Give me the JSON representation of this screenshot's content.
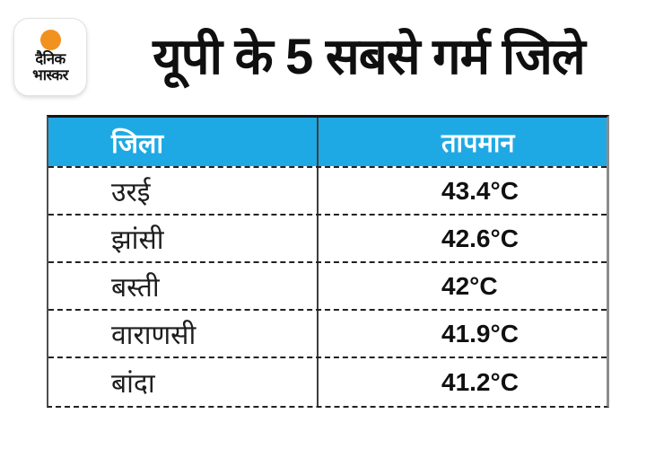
{
  "colors": {
    "header_bg": "#1FA9E4",
    "header_text": "#FFFFFF",
    "sun_orange": "#F1911E",
    "title_text": "#0F0F0F",
    "body_text": "#1D1D1D"
  },
  "logo": {
    "line1": "दैनिक",
    "line2": "भास्कर"
  },
  "title": "यूपी के 5 सबसे गर्म जिले",
  "table": {
    "headers": {
      "district": "जिला",
      "temperature": "तापमान"
    },
    "rows": [
      {
        "district": "उरई",
        "temperature": "43.4°C"
      },
      {
        "district": "झांसी",
        "temperature": "42.6°C"
      },
      {
        "district": "बस्ती",
        "temperature": "42°C"
      },
      {
        "district": "वाराणसी",
        "temperature": "41.9°C"
      },
      {
        "district": "बांदा",
        "temperature": "41.2°C"
      }
    ]
  },
  "chart_data": {
    "type": "table",
    "title": "यूपी के 5 सबसे गर्म जिले",
    "columns": [
      "जिला",
      "तापमान"
    ],
    "rows": [
      [
        "उरई",
        "43.4°C"
      ],
      [
        "झांसी",
        "42.6°C"
      ],
      [
        "बस्ती",
        "42°C"
      ],
      [
        "वाराणसी",
        "41.9°C"
      ],
      [
        "बांदा",
        "41.2°C"
      ]
    ],
    "temperatures_celsius": [
      43.4,
      42.6,
      42.0,
      41.9,
      41.2
    ]
  }
}
